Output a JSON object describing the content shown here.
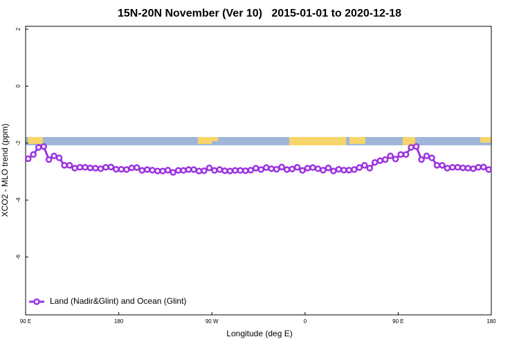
{
  "chart_data": {
    "type": "line",
    "title": "15N-20N November (Ver 10)   2015-01-01 to 2020-12-18",
    "x_label": "Longitude (deg E)",
    "y_label": "XCO2 - MLO trend (ppm)",
    "x": [
      92.5,
      97.5,
      102.5,
      107.5,
      112.5,
      117.5,
      122.5,
      127.5,
      132.5,
      137.5,
      142.5,
      147.5,
      152.5,
      157.5,
      162.5,
      167.5,
      172.5,
      177.5,
      182.5,
      187.5,
      192.5,
      197.5,
      202.5,
      207.5,
      212.5,
      217.5,
      222.5,
      227.5,
      232.5,
      237.5,
      242.5,
      247.5,
      252.5,
      257.5,
      262.5,
      267.5,
      272.5,
      277.5,
      282.5,
      287.5,
      292.5,
      297.5,
      302.5,
      307.5,
      312.5,
      317.5,
      322.5,
      327.5,
      332.5,
      337.5,
      342.5,
      347.5,
      352.5,
      357.5,
      362.5,
      367.5,
      372.5,
      377.5,
      382.5,
      387.5,
      392.5,
      397.5,
      402.5,
      407.5,
      412.5,
      417.5,
      422.5,
      427.5,
      432.5,
      437.5,
      442.5,
      447.5,
      452.5,
      457.5,
      462.5,
      467.5,
      472.5,
      477.5,
      482.5,
      487.5,
      492.5,
      497.5,
      502.5,
      507.5,
      512.5,
      517.5,
      522.5,
      527.5,
      532.5,
      537.5
    ],
    "series": [
      {
        "name": "Land (Nadir&Glint) and Ocean (Glint)",
        "color": "#9b30e0",
        "values": [
          -2.55,
          -2.4,
          -2.15,
          -2.12,
          -2.58,
          -2.45,
          -2.52,
          -2.78,
          -2.78,
          -2.88,
          -2.85,
          -2.85,
          -2.87,
          -2.88,
          -2.9,
          -2.85,
          -2.84,
          -2.92,
          -2.92,
          -2.93,
          -2.87,
          -2.86,
          -2.96,
          -2.93,
          -2.95,
          -2.98,
          -2.98,
          -2.95,
          -3.03,
          -2.96,
          -2.96,
          -2.93,
          -2.93,
          -2.98,
          -2.97,
          -2.87,
          -2.96,
          -2.93,
          -2.97,
          -2.98,
          -2.96,
          -2.96,
          -2.97,
          -2.95,
          -2.88,
          -2.93,
          -2.86,
          -2.9,
          -2.92,
          -2.84,
          -2.93,
          -2.91,
          -2.85,
          -2.96,
          -2.88,
          -2.86,
          -2.9,
          -2.95,
          -2.87,
          -2.98,
          -2.92,
          -2.95,
          -2.95,
          -2.93,
          -2.86,
          -2.78,
          -2.88,
          -2.68,
          -2.62,
          -2.58,
          -2.45,
          -2.56,
          -2.4,
          -2.4,
          -2.15,
          -2.12,
          -2.58,
          -2.45,
          -2.52,
          -2.78,
          -2.78,
          -2.88,
          -2.85,
          -2.85,
          -2.87,
          -2.88,
          -2.9,
          -2.85,
          -2.84,
          -2.93
        ]
      }
    ],
    "xlim": [
      90,
      540
    ],
    "xticks": [
      {
        "value": 90,
        "label": "90 E"
      },
      180,
      {
        "value": 270,
        "label": "90 W"
      },
      {
        "value": 360,
        "label": "0"
      },
      {
        "value": 450,
        "label": "90 E"
      },
      180
    ],
    "ylim": [
      -8.03,
      2.1
    ],
    "yticks": [
      2,
      0,
      -2,
      -4,
      -6
    ],
    "legend": "bottom-left"
  }
}
